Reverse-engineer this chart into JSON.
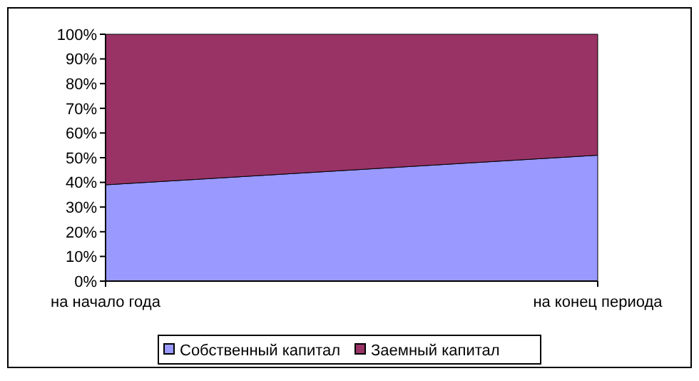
{
  "chart_data": {
    "type": "area",
    "stacked": true,
    "categories": [
      "на начало года",
      "на конец периода"
    ],
    "series": [
      {
        "name": "Собственный капитал",
        "color": "#9999ff",
        "values": [
          39,
          51
        ]
      },
      {
        "name": "Заемный капитал",
        "color": "#993366",
        "values": [
          61,
          49
        ]
      }
    ],
    "ylim": [
      0,
      100
    ],
    "yticks": [
      {
        "value": 0,
        "label": "0%"
      },
      {
        "value": 10,
        "label": "10%"
      },
      {
        "value": 20,
        "label": "20%"
      },
      {
        "value": 30,
        "label": "30%"
      },
      {
        "value": 40,
        "label": "40%"
      },
      {
        "value": 50,
        "label": "50%"
      },
      {
        "value": 60,
        "label": "60%"
      },
      {
        "value": 70,
        "label": "70%"
      },
      {
        "value": 80,
        "label": "80%"
      },
      {
        "value": 90,
        "label": "90%"
      },
      {
        "value": 100,
        "label": "100%"
      }
    ],
    "legend": "bottom"
  }
}
